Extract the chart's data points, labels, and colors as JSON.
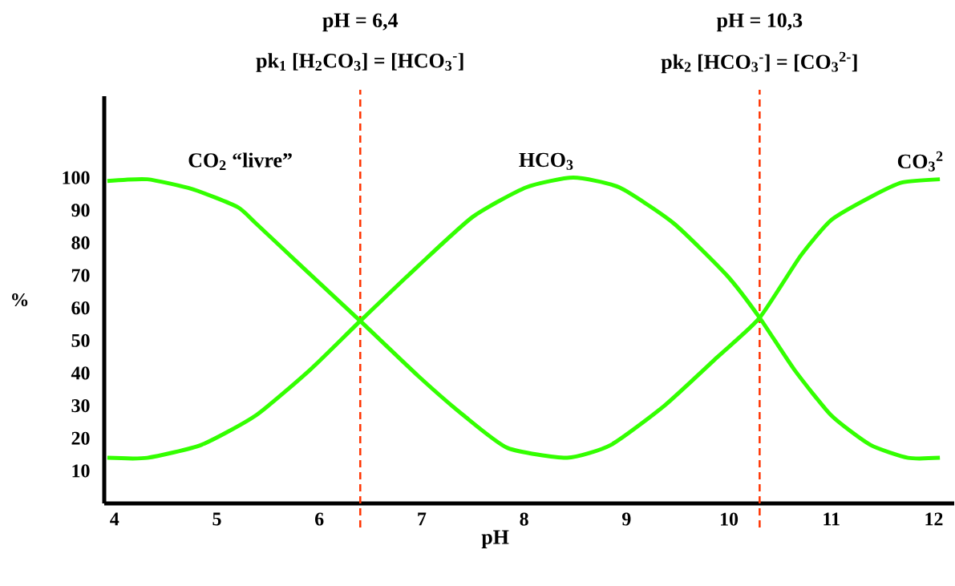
{
  "chart_data": {
    "type": "line",
    "xlabel": "pH",
    "ylabel": "%",
    "xlim": [
      3.9,
      12.2
    ],
    "ylim": [
      0,
      125
    ],
    "xticks": [
      4,
      5,
      6,
      7,
      8,
      9,
      10,
      11,
      12
    ],
    "yticks": [
      10,
      20,
      30,
      40,
      50,
      60,
      70,
      80,
      90,
      100
    ],
    "marker": "none",
    "line_style": "solid",
    "series": [
      {
        "color": "#33ff00",
        "x": [
          3.93,
          4.32,
          4.76,
          5.2,
          5.38,
          5.82,
          6.4,
          6.97,
          7.41,
          7.84,
          8.42,
          8.85,
          9.37,
          9.89,
          10.3,
          10.7,
          11.0,
          11.38,
          11.69,
          12.06
        ],
        "values": [
          99,
          99.5,
          96.5,
          91,
          86,
          73,
          56,
          39,
          27,
          17,
          14,
          18,
          30,
          45,
          57,
          76,
          87,
          94,
          98.5,
          99.5
        ]
      },
      {
        "color": "#33ff00",
        "x": [
          3.93,
          4.32,
          4.85,
          5.38,
          5.91,
          6.4,
          6.97,
          7.5,
          8.02,
          8.48,
          8.93,
          9.46,
          9.98,
          10.3,
          10.64,
          11.0,
          11.38,
          11.75,
          12.06
        ],
        "values": [
          14,
          14,
          18,
          27,
          41,
          56,
          73,
          88,
          97,
          100,
          97,
          86,
          70,
          57,
          41,
          27,
          18,
          14,
          14
        ]
      }
    ],
    "ref_lines": [
      {
        "axis": "x",
        "value": 6.4,
        "color": "#ff3300",
        "line_style": "dashed"
      },
      {
        "axis": "x",
        "value": 10.3,
        "color": "#ff3300",
        "line_style": "dashed"
      }
    ],
    "annotations": [
      "pH = 6,4",
      "pk$_{1}$ [H$_{2}$CO$_{3}$] = [HCO$_{3}$$^{-}$]",
      "pH = 10,3",
      "pk$_{2}$ [HCO$_{3}$$^{-}$] = [CO$_{3}$$^{2-}$]",
      "CO$_{2}$ “livre”",
      "HCO$_{3}$",
      "CO$_{3}$$^{2}$"
    ]
  }
}
